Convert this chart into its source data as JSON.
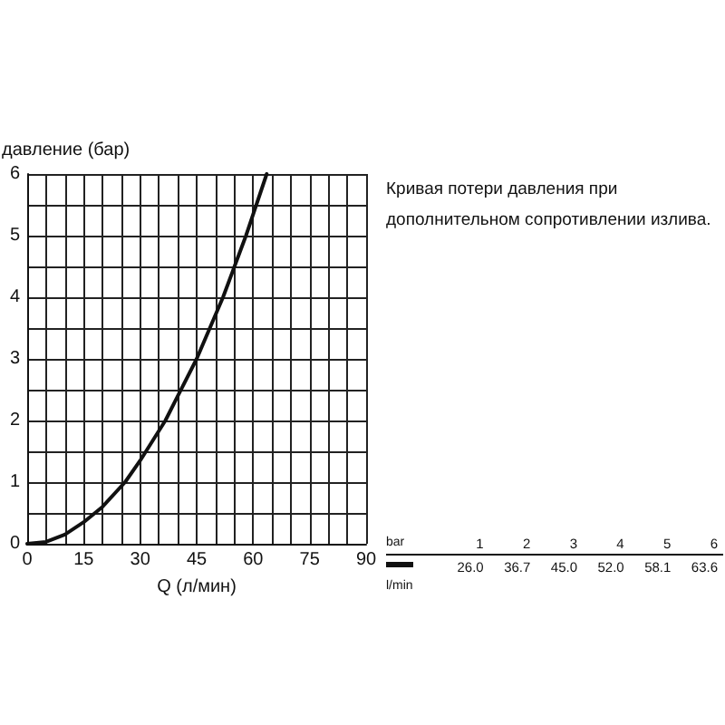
{
  "chart_data": {
    "type": "line",
    "xlabel": "Q (л/мин)",
    "ylabel": "давление (бар)",
    "annotations": [
      "Кривая потери давления при дополнительном сопротивлении излива.",
      "bar",
      "l/min",
      "1",
      "2",
      "3",
      "4",
      "5",
      "6",
      "26.0",
      "36.7",
      "45.0",
      "52.0",
      "58.1",
      "63.6"
    ],
    "series": [
      {
        "color": "#111111",
        "x": [
          0,
          5,
          10,
          15,
          20,
          26.0,
          30,
          36.7,
          40,
          45.0,
          52.0,
          58.1,
          63.6
        ],
        "values": [
          0,
          0.03,
          0.15,
          0.35,
          0.6,
          1,
          1.35,
          2,
          2.4,
          3,
          4,
          5,
          6
        ]
      }
    ],
    "xlim": [
      0,
      90
    ],
    "xticks": [
      0,
      15,
      30,
      45,
      60,
      75,
      90
    ],
    "ylim": [
      0,
      6
    ],
    "yticks": [
      0,
      1,
      2,
      3,
      4,
      5,
      6
    ],
    "grid": true,
    "marker": "none",
    "line_style": "solid"
  }
}
